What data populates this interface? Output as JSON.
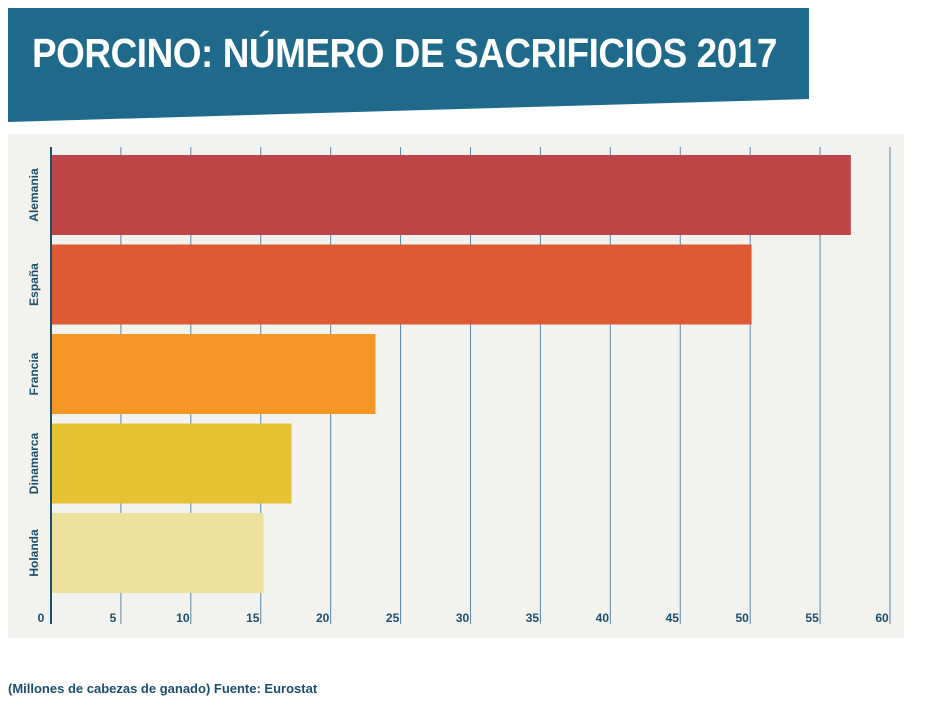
{
  "title": "PORCINO: NÚMERO DE SACRIFICIOS 2017",
  "footer_note": "(Millones de cabezas de ganado) Fuente: Eurostat",
  "colors": {
    "banner": "#1f6a8a",
    "panel": "#f2f2ee",
    "gridline": "#5a86a6",
    "axis": "#1d4e6b",
    "text": "#1d4e6b"
  },
  "chart_data": {
    "type": "bar",
    "orientation": "horizontal",
    "categories": [
      "Alemania",
      "España",
      "Francia",
      "Dinamarca",
      "Holanda"
    ],
    "values": [
      57.2,
      50.1,
      23.2,
      17.2,
      15.2
    ],
    "bar_colors": [
      "#bd4548",
      "#dd5a35",
      "#f49526",
      "#e4c233",
      "#ece09c"
    ],
    "xlim": [
      0,
      60
    ],
    "xticks": [
      0,
      5,
      10,
      15,
      20,
      25,
      30,
      35,
      40,
      45,
      50,
      55,
      60
    ],
    "grid": true,
    "title": "PORCINO: NÚMERO DE SACRIFICIOS 2017"
  }
}
